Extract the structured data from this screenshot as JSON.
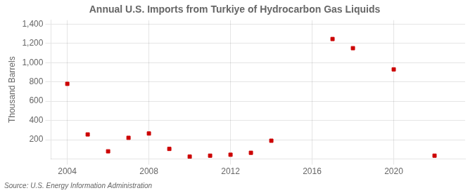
{
  "chart_data": {
    "type": "scatter",
    "title": "Annual U.S. Imports from Turkiye of Hydrocarbon Gas Liquids",
    "ylabel": "Thousand Barrels",
    "annotation": "Source: U.S. Energy Information Administration",
    "x": [
      2004,
      2005,
      2006,
      2007,
      2008,
      2009,
      2010,
      2011,
      2012,
      2013,
      2014,
      2017,
      2018,
      2020,
      2022
    ],
    "values": [
      780,
      255,
      80,
      220,
      265,
      105,
      25,
      35,
      45,
      65,
      190,
      1245,
      1150,
      930,
      35
    ],
    "color": "#cc0000",
    "marker": "square",
    "xlim": [
      2003.2,
      2023.5
    ],
    "xticks": [
      2004,
      2008,
      2012,
      2016,
      2020
    ],
    "ylim": [
      0,
      1440
    ],
    "yticks": [
      200,
      400,
      600,
      800,
      {
        "value": 1000,
        "label": "1,000"
      },
      {
        "value": 1200,
        "label": "1,200"
      },
      {
        "value": 1400,
        "label": "1,400"
      }
    ],
    "grid": true
  }
}
